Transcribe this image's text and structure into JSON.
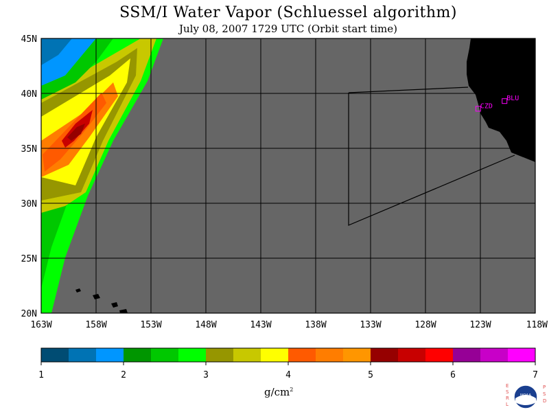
{
  "title": "SSM/I Water Vapor (Schluessel algorithm)",
  "subtitle": "July 08, 2007  1729 UTC  (Orbit start time)",
  "map": {
    "lon_range": [
      -163,
      -118
    ],
    "lat_range": [
      20,
      45
    ],
    "lon_ticks": [
      "163W",
      "158W",
      "153W",
      "148W",
      "143W",
      "138W",
      "133W",
      "128W",
      "123W",
      "118W"
    ],
    "lat_ticks": [
      "45N",
      "40N",
      "35N",
      "30N",
      "25N",
      "20N"
    ],
    "no_data_color": "#666666",
    "land_color": "#000000",
    "sites": [
      {
        "name": "CZD",
        "lon": -123.2,
        "lat": 38.6
      },
      {
        "name": "BLU",
        "lon": -120.8,
        "lat": 39.3
      }
    ]
  },
  "colorbar": {
    "colors": [
      "#004c73",
      "#0073b4",
      "#0096ff",
      "#009600",
      "#00c800",
      "#00ff00",
      "#969600",
      "#c8c800",
      "#ffff00",
      "#ff5a00",
      "#ff7d00",
      "#ff9600",
      "#960000",
      "#c80000",
      "#ff0000",
      "#960096",
      "#c800c8",
      "#ff00ff"
    ],
    "tick_labels": [
      "1",
      "2",
      "3",
      "4",
      "5",
      "6",
      "7"
    ],
    "unit_label": "g/cm",
    "unit_sup": "2"
  },
  "logo": {
    "left_text": "ESRL",
    "right_text": "PSD",
    "badge_text": "NOAA"
  }
}
